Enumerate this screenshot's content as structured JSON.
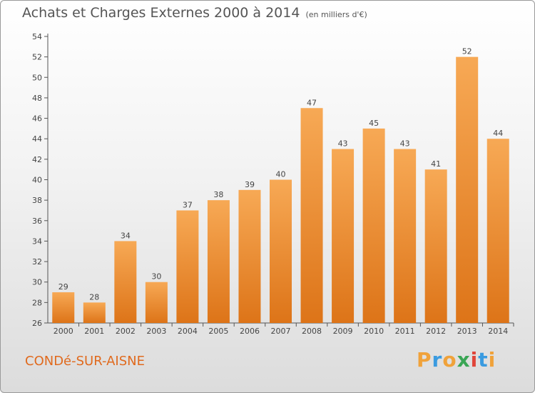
{
  "title": "Achats et Charges Externes 2000 à 2014",
  "subtitle": "(en milliers d'€)",
  "city": "CONDé-SUR-AISNE",
  "brand": {
    "letters": [
      "P",
      "r",
      "o",
      "x",
      "i",
      "t",
      "i"
    ],
    "colors": [
      "#f0a23a",
      "#3a9be0",
      "#f0a23a",
      "#3aa655",
      "#e0453a",
      "#3a9be0",
      "#f0a23a"
    ]
  },
  "colors": {
    "bar_top": "#f7a955",
    "bar_bottom": "#dd7418",
    "title": "#555555",
    "city": "#e06a1e"
  },
  "chart_data": {
    "type": "bar",
    "categories": [
      "2000",
      "2001",
      "2002",
      "2003",
      "2004",
      "2005",
      "2006",
      "2007",
      "2008",
      "2009",
      "2010",
      "2011",
      "2012",
      "2013",
      "2014"
    ],
    "values": [
      29,
      28,
      34,
      30,
      37,
      38,
      39,
      40,
      47,
      43,
      45,
      43,
      41,
      52,
      44
    ],
    "ylim": [
      26,
      54
    ],
    "yticks": [
      26,
      28,
      30,
      32,
      34,
      36,
      38,
      40,
      42,
      44,
      46,
      48,
      50,
      52,
      54
    ],
    "grid": false,
    "data_labels": true
  }
}
